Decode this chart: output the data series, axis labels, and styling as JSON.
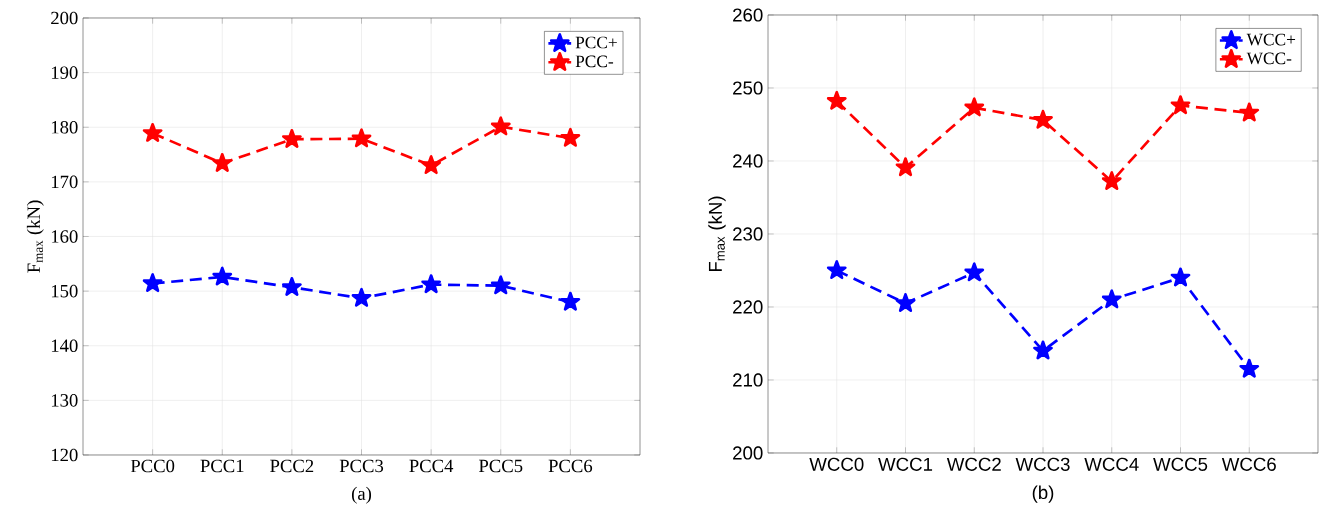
{
  "chart_data": [
    {
      "type": "line",
      "xlabel": "(a)",
      "ylabel": "F$_{max}$ (kN)",
      "categories": [
        "PCC0",
        "PCC1",
        "PCC2",
        "PCC3",
        "PCC4",
        "PCC5",
        "PCC6"
      ],
      "series": [
        {
          "name": "PCC+",
          "color": "#0000ff",
          "values": [
            151.4,
            152.6,
            150.7,
            148.7,
            151.2,
            151.0,
            148.0
          ]
        },
        {
          "name": "PCC-",
          "color": "#ff0000",
          "values": [
            178.9,
            173.4,
            177.8,
            177.9,
            173.0,
            180.1,
            178.0
          ]
        }
      ],
      "ylim": [
        120,
        200
      ],
      "yticks": [
        120,
        130,
        140,
        150,
        160,
        170,
        180,
        190,
        200
      ],
      "grid": true,
      "legend": "top right",
      "marker": "star",
      "line_style": "dashed"
    },
    {
      "type": "line",
      "xlabel": "(b)",
      "ylabel": "F$_{max}$ (kN)",
      "categories": [
        "WCC0",
        "WCC1",
        "WCC2",
        "WCC3",
        "WCC4",
        "WCC5",
        "WCC6"
      ],
      "series": [
        {
          "name": "WCC+",
          "color": "#0000ff",
          "values": [
            225.0,
            220.5,
            224.7,
            214.0,
            221.0,
            224.0,
            211.5
          ]
        },
        {
          "name": "WCC-",
          "color": "#ff0000",
          "values": [
            248.2,
            239.1,
            247.3,
            245.6,
            237.2,
            247.6,
            246.6
          ]
        }
      ],
      "ylim": [
        200,
        260
      ],
      "yticks": [
        200,
        210,
        220,
        230,
        240,
        250,
        260
      ],
      "grid": true,
      "legend": "top right",
      "marker": "star",
      "line_style": "dashed"
    }
  ]
}
